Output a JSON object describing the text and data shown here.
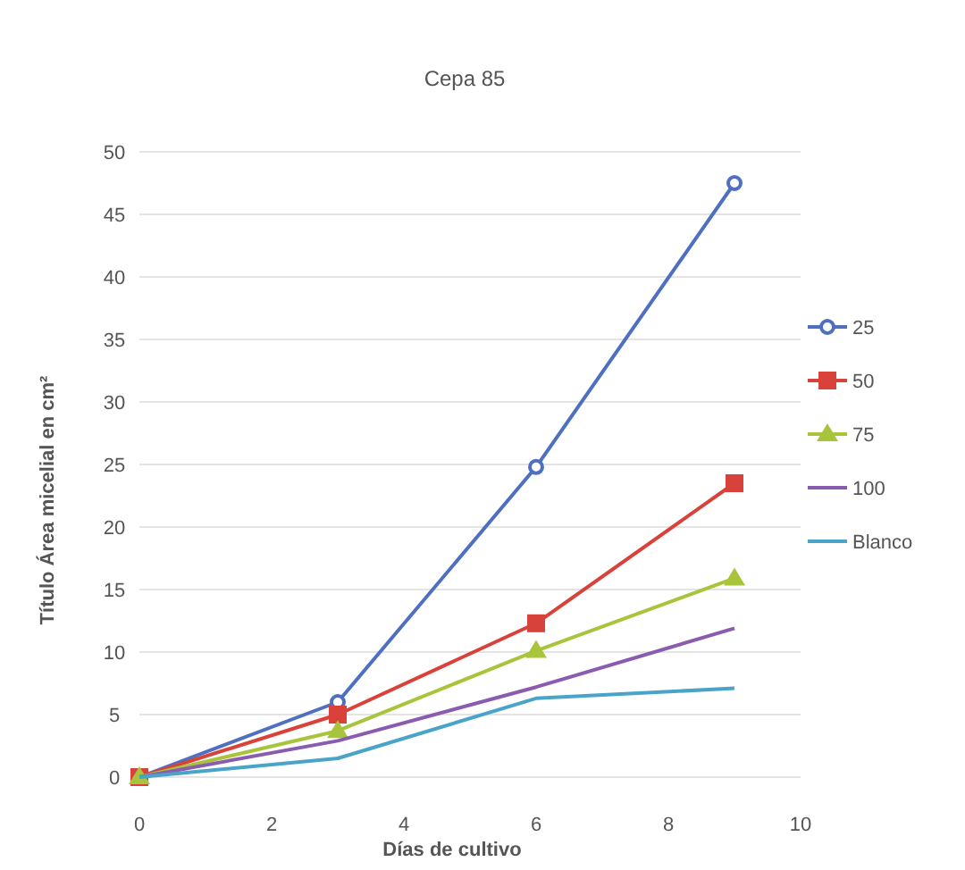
{
  "chart_data": {
    "type": "line",
    "title": "Cepa 85",
    "xlabel": "Días de cultivo",
    "ylabel": "Título Área micelial en cm²",
    "x": [
      0,
      3,
      6,
      9
    ],
    "xlim": [
      0,
      10
    ],
    "xticks": [
      0,
      2,
      4,
      6,
      8,
      10
    ],
    "ylim": [
      0,
      50
    ],
    "yticks": [
      0,
      5,
      10,
      15,
      20,
      25,
      30,
      35,
      40,
      45,
      50
    ],
    "grid": "y",
    "legend": "right",
    "series": [
      {
        "name": "25",
        "color": "#4f6fc0",
        "marker": "circle",
        "values": [
          0,
          6,
          24.8,
          47.5
        ]
      },
      {
        "name": "50",
        "color": "#d9423a",
        "marker": "square",
        "values": [
          0,
          5,
          12.3,
          23.5
        ]
      },
      {
        "name": "75",
        "color": "#a8c43a",
        "marker": "triangle",
        "values": [
          0,
          3.7,
          10.1,
          15.9
        ]
      },
      {
        "name": "100",
        "color": "#8a5cb0",
        "marker": "none",
        "values": [
          0,
          2.9,
          7.2,
          11.9
        ]
      },
      {
        "name": "Blanco",
        "color": "#4aa3c8",
        "marker": "none",
        "values": [
          0,
          1.5,
          6.3,
          7.1
        ]
      }
    ]
  }
}
